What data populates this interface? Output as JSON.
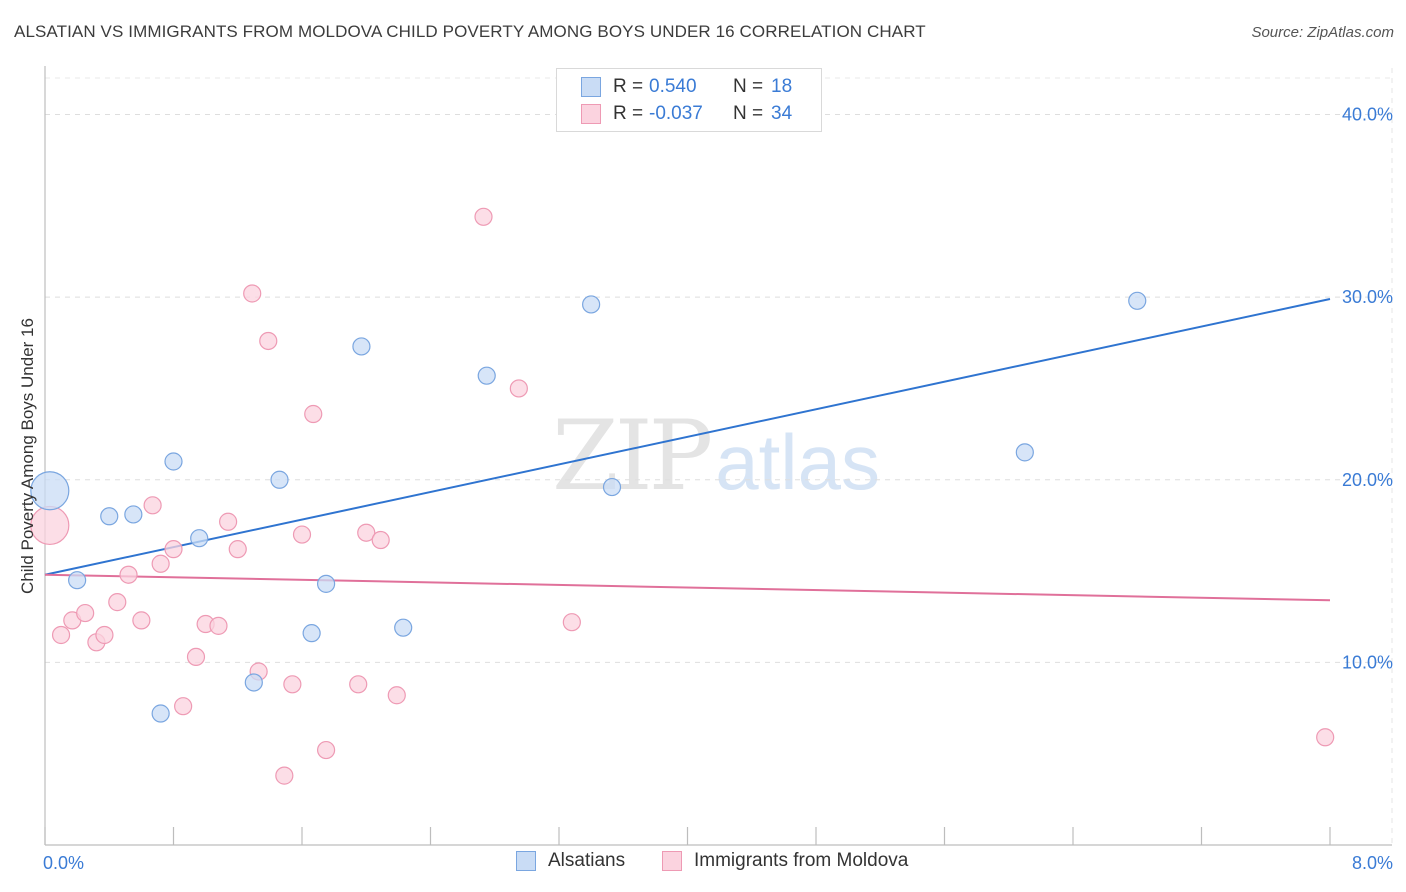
{
  "header": {
    "title": "ALSATIAN VS IMMIGRANTS FROM MOLDOVA CHILD POVERTY AMONG BOYS UNDER 16 CORRELATION CHART",
    "source": "Source: ZipAtlas.com"
  },
  "watermark": {
    "zip": "ZIP",
    "atlas": "atlas"
  },
  "legend": {
    "rows": [
      {
        "r_label": "R =",
        "r_value": "0.540",
        "n_label": "N =",
        "n_value": "18",
        "color": "#aecbf0",
        "border": "#7aa6e0"
      },
      {
        "r_label": "R =",
        "r_value": "-0.037",
        "n_label": "N =",
        "n_value": "34",
        "color": "#f9c4d4",
        "border": "#ee9ab4"
      }
    ]
  },
  "bottom_legend": {
    "items": [
      {
        "label": "Alsatians",
        "color": "#aecbf0",
        "border": "#7aa6e0"
      },
      {
        "label": "Immigrants from Moldova",
        "color": "#f9c4d4",
        "border": "#ee9ab4"
      }
    ]
  },
  "chart_data": {
    "type": "scatter",
    "title": "ALSATIAN VS IMMIGRANTS FROM MOLDOVA CHILD POVERTY AMONG BOYS UNDER 16 CORRELATION CHART",
    "xlabel": "",
    "ylabel": "Child Poverty Among Boys Under 16",
    "xlim": [
      0,
      8
    ],
    "ylim": [
      0,
      42
    ],
    "x_tick_labels": [
      "0.0%",
      "8.0%"
    ],
    "y_ticks": [
      10,
      20,
      30,
      40
    ],
    "y_tick_labels": [
      "10.0%",
      "20.0%",
      "30.0%",
      "40.0%"
    ],
    "grid": true,
    "series": [
      {
        "name": "Alsatians",
        "color": "#7aa6e0",
        "fill": "#c9dcf5",
        "line_color": "#2f74d0",
        "trend": [
          [
            0,
            14.8
          ],
          [
            8,
            29.9
          ]
        ],
        "points": [
          {
            "x": 0.03,
            "y": 19.4,
            "big": true
          },
          {
            "x": 0.2,
            "y": 14.5
          },
          {
            "x": 0.4,
            "y": 18.0
          },
          {
            "x": 0.55,
            "y": 18.1
          },
          {
            "x": 0.72,
            "y": 7.2
          },
          {
            "x": 0.8,
            "y": 21.0
          },
          {
            "x": 0.96,
            "y": 16.8
          },
          {
            "x": 1.3,
            "y": 8.9
          },
          {
            "x": 1.46,
            "y": 20.0
          },
          {
            "x": 1.66,
            "y": 11.6
          },
          {
            "x": 1.75,
            "y": 14.3
          },
          {
            "x": 1.97,
            "y": 27.3
          },
          {
            "x": 2.23,
            "y": 11.9
          },
          {
            "x": 2.75,
            "y": 25.7
          },
          {
            "x": 3.4,
            "y": 29.6
          },
          {
            "x": 3.53,
            "y": 19.6
          },
          {
            "x": 6.1,
            "y": 21.5
          },
          {
            "x": 6.8,
            "y": 29.8
          }
        ]
      },
      {
        "name": "Immigrants from Moldova",
        "color": "#ee9ab4",
        "fill": "#fbd3df",
        "line_color": "#e0709a",
        "trend": [
          [
            0,
            14.8
          ],
          [
            8,
            13.4
          ]
        ],
        "points": [
          {
            "x": 0.03,
            "y": 17.5,
            "big": true
          },
          {
            "x": 0.1,
            "y": 11.5
          },
          {
            "x": 0.17,
            "y": 12.3
          },
          {
            "x": 0.25,
            "y": 12.7
          },
          {
            "x": 0.32,
            "y": 11.1
          },
          {
            "x": 0.37,
            "y": 11.5
          },
          {
            "x": 0.45,
            "y": 13.3
          },
          {
            "x": 0.52,
            "y": 14.8
          },
          {
            "x": 0.6,
            "y": 12.3
          },
          {
            "x": 0.67,
            "y": 18.6
          },
          {
            "x": 0.72,
            "y": 15.4
          },
          {
            "x": 0.8,
            "y": 16.2
          },
          {
            "x": 0.86,
            "y": 7.6
          },
          {
            "x": 0.94,
            "y": 10.3
          },
          {
            "x": 1.0,
            "y": 12.1
          },
          {
            "x": 1.08,
            "y": 12.0
          },
          {
            "x": 1.14,
            "y": 17.7
          },
          {
            "x": 1.2,
            "y": 16.2
          },
          {
            "x": 1.29,
            "y": 30.2
          },
          {
            "x": 1.33,
            "y": 9.5
          },
          {
            "x": 1.39,
            "y": 27.6
          },
          {
            "x": 1.49,
            "y": 3.8
          },
          {
            "x": 1.54,
            "y": 8.8
          },
          {
            "x": 1.6,
            "y": 17.0
          },
          {
            "x": 1.67,
            "y": 23.6
          },
          {
            "x": 1.75,
            "y": 5.2
          },
          {
            "x": 1.95,
            "y": 8.8
          },
          {
            "x": 2.0,
            "y": 17.1
          },
          {
            "x": 2.09,
            "y": 16.7
          },
          {
            "x": 2.19,
            "y": 8.2
          },
          {
            "x": 2.73,
            "y": 34.4
          },
          {
            "x": 2.95,
            "y": 25.0
          },
          {
            "x": 3.28,
            "y": 12.2
          },
          {
            "x": 7.97,
            "y": 5.9
          }
        ]
      }
    ]
  }
}
